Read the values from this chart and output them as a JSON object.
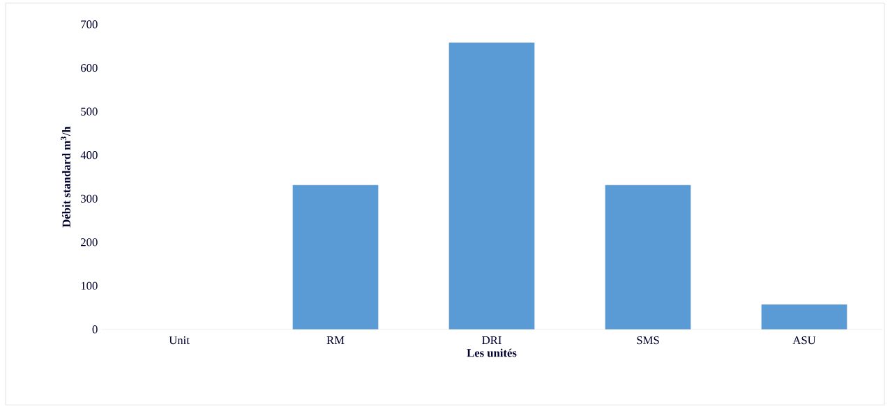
{
  "chart_data": {
    "type": "bar",
    "xlabel": "Les unités",
    "ylabel": "Débit standard m$^{3}$/h",
    "categories": [
      "Unit",
      "RM",
      "DRI",
      "SMS",
      "ASU"
    ],
    "values": [
      0,
      331,
      658,
      331,
      57
    ],
    "color": "#5b9bd5",
    "ylim": [
      0,
      700
    ],
    "yticks": [
      0,
      100,
      200,
      300,
      400,
      500,
      600,
      700
    ]
  }
}
